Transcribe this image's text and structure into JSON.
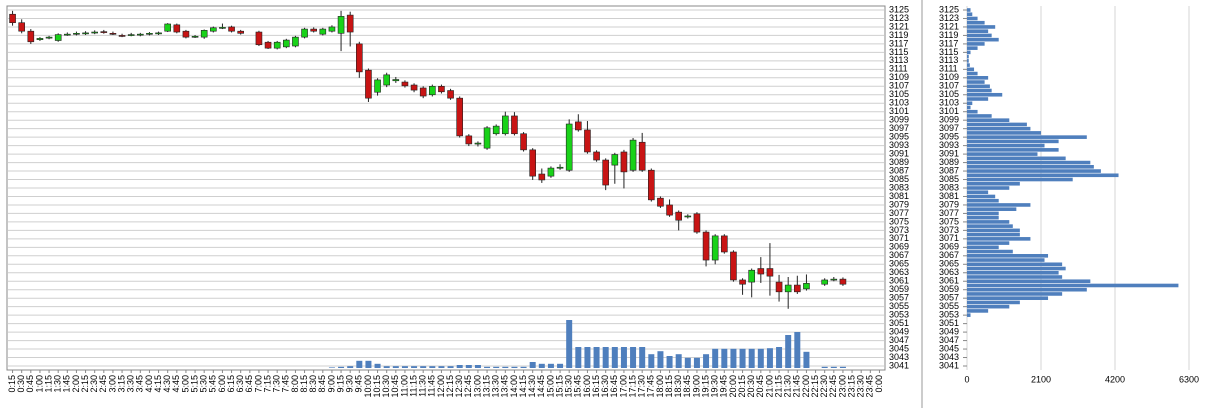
{
  "chart_data": [
    {
      "type": "candlestick",
      "categories": [
        "0:15",
        "0:30",
        "0:45",
        "1:00",
        "1:15",
        "1:30",
        "1:45",
        "2:00",
        "2:15",
        "2:30",
        "2:45",
        "3:00",
        "3:15",
        "3:30",
        "3:45",
        "4:00",
        "4:15",
        "4:30",
        "4:45",
        "5:00",
        "5:15",
        "5:30",
        "5:45",
        "6:00",
        "6:15",
        "6:30",
        "6:45",
        "7:00",
        "7:15",
        "7:30",
        "7:45",
        "8:00",
        "8:15",
        "8:30",
        "8:45",
        "9:00",
        "9:15",
        "9:30",
        "9:45",
        "10:00",
        "10:15",
        "10:30",
        "10:45",
        "11:00",
        "11:15",
        "11:30",
        "11:45",
        "12:00",
        "12:15",
        "12:30",
        "12:45",
        "13:00",
        "13:15",
        "13:30",
        "13:45",
        "14:00",
        "14:15",
        "14:30",
        "14:45",
        "15:00",
        "15:15",
        "15:30",
        "15:45",
        "16:00",
        "16:15",
        "16:30",
        "16:45",
        "17:00",
        "17:15",
        "17:30",
        "17:45",
        "18:00",
        "18:15",
        "18:30",
        "18:45",
        "19:00",
        "19:15",
        "19:30",
        "19:45",
        "20:00",
        "20:15",
        "20:30",
        "20:45",
        "21:00",
        "21:15",
        "21:30",
        "21:45",
        "22:00",
        "22:15",
        "22:30",
        "22:45",
        "23:00",
        "23:15",
        "23:30",
        "23:45",
        "0:00"
      ],
      "open": [
        3124,
        3122,
        3120,
        3118,
        3118.5,
        3117.8,
        3119.2,
        3119.4,
        3119.5,
        3119.7,
        3119.9,
        3119.5,
        3119,
        3119.1,
        3119.2,
        3119.4,
        3119.5,
        3120,
        3121.5,
        3120,
        3118.7,
        3118.6,
        3120,
        3120.8,
        3121,
        3120,
        null,
        3119.8,
        3117.4,
        3116,
        3116.3,
        3116.5,
        3118.6,
        3120.5,
        3119.3,
        3120,
        3119.5,
        3123.8,
        3117,
        3110.8,
        3105.6,
        3107.3,
        3108.3,
        3108,
        3107.3,
        3106.6,
        3105,
        3107,
        3106,
        3104.2,
        3095.3,
        3093.5,
        3092.4,
        3095.8,
        3095.8,
        3100,
        3095.8,
        3092,
        3086.3,
        3085.8,
        3087.7,
        3087.2,
        3098.6,
        3096.7,
        3091.5,
        3089.6,
        3088.4,
        3091.5,
        3087.2,
        3093.8,
        3087.2,
        3080.6,
        3079,
        3077.3,
        3076.2,
        3076.9,
        3072.6,
        3066,
        3071.7,
        3067.9,
        3061.3,
        3060.8,
        3064,
        3064,
        3060.8,
        3058.5,
        3060.1,
        3059.2,
        null,
        3060.3,
        3061.3,
        3061.5,
        null,
        null,
        null,
        null
      ],
      "high": [
        3124.8,
        3122.8,
        3120.5,
        3118.6,
        3118.9,
        3119.5,
        3119.7,
        3119.9,
        3120,
        3120.2,
        3120.3,
        3119.9,
        3119.4,
        3119.6,
        3119.6,
        3119.8,
        3119.9,
        3121.9,
        3121.8,
        3120.3,
        3119.1,
        3120.4,
        3121.1,
        3121.8,
        3121.3,
        3120.3,
        null,
        3120.1,
        3117.7,
        3117.7,
        3118.2,
        3118.9,
        3120.8,
        3120.9,
        3120.8,
        3121.4,
        3124.8,
        3124.6,
        3117.5,
        3111.2,
        3108.9,
        3110.2,
        3109.2,
        3108.4,
        3107.7,
        3107,
        3107.4,
        3107.4,
        3106.4,
        3104.6,
        3095.7,
        3094,
        3097.6,
        3098,
        3101,
        3100.9,
        3096.2,
        3092.4,
        3087.6,
        3088.1,
        3088.6,
        3099.2,
        3100.4,
        3098.8,
        3091.9,
        3090,
        3091.3,
        3092,
        3094.8,
        3096,
        3087.6,
        3081,
        3080.3,
        3077.7,
        3076.8,
        3077.3,
        3073,
        3072.1,
        3072.1,
        3068.3,
        3061.7,
        3064,
        3066.7,
        3070,
        3062.5,
        3062,
        3062.3,
        3062.6,
        null,
        3061.7,
        3062,
        3061.9,
        null,
        null,
        null,
        null
      ],
      "low": [
        3121.3,
        3119.5,
        3117,
        3117.7,
        3118.1,
        3117.5,
        3118.9,
        3119,
        3119.1,
        3119.3,
        3119.4,
        3119.1,
        3118.6,
        3118.8,
        3118.8,
        3119,
        3119.1,
        3119.8,
        3119.5,
        3118.3,
        3118.4,
        3118.2,
        3119.7,
        3120.5,
        3119.7,
        3119.2,
        null,
        3116.5,
        3115.8,
        3115.7,
        3116,
        3116.2,
        3118.3,
        3119.7,
        3119,
        3119.7,
        3115.3,
        3116.4,
        3109,
        3103.3,
        3104.8,
        3106.8,
        3107.8,
        3106.7,
        3105.6,
        3104.2,
        3104.6,
        3105.3,
        3103.8,
        3094.9,
        3092.9,
        3092.8,
        3092,
        3095.4,
        3095.4,
        3095.4,
        3091.6,
        3084.9,
        3084.2,
        3085.4,
        3087.3,
        3086.8,
        3096.3,
        3091.1,
        3089.2,
        3082.5,
        3084,
        3082.9,
        3086.8,
        3086.8,
        3079.8,
        3078.3,
        3076.2,
        3073,
        3075.8,
        3072.2,
        3064.5,
        3065,
        3067.5,
        3060.9,
        3057.8,
        3057.2,
        3060.6,
        3057.6,
        3056.2,
        3054.5,
        3058,
        3058.8,
        null,
        3059.9,
        3061,
        3059.9,
        null,
        null,
        null,
        null
      ],
      "close": [
        3122,
        3120,
        3117.5,
        3118.3,
        3118.6,
        3119.2,
        3119.3,
        3119.5,
        3119.6,
        3119.8,
        3119.7,
        3119.4,
        3118.9,
        3119.2,
        3119.3,
        3119.5,
        3119.6,
        3121.7,
        3119.8,
        3118.6,
        3118.8,
        3120.2,
        3120.8,
        3120.9,
        3120,
        3119.5,
        null,
        3116.8,
        3116,
        3117.4,
        3117.9,
        3118.6,
        3120.5,
        3120,
        3120.5,
        3121,
        3123.5,
        3119.8,
        3110.4,
        3104.2,
        3108.5,
        3109.7,
        3108.6,
        3107.1,
        3106.1,
        3104.7,
        3107,
        3105.7,
        3104.2,
        3095.3,
        3093.4,
        3093.6,
        3097.2,
        3097.6,
        3100,
        3095.8,
        3092,
        3085.8,
        3084.9,
        3087.7,
        3087.9,
        3098.1,
        3096.7,
        3091.5,
        3089.6,
        3083.7,
        3090.9,
        3086.8,
        3094.3,
        3087.2,
        3080.2,
        3078.7,
        3076.6,
        3075.4,
        3076.4,
        3072.6,
        3066,
        3071.7,
        3067.9,
        3061.3,
        3060.3,
        3063.6,
        3062.7,
        3062.2,
        3058.5,
        3060.1,
        3058.5,
        3060.5,
        null,
        3061.3,
        3061.5,
        3060.3,
        null,
        null,
        null,
        null
      ],
      "volume": [
        0,
        0,
        0,
        0,
        0,
        0,
        0,
        0,
        0,
        0,
        0,
        0,
        0,
        0,
        0,
        0,
        0,
        0,
        0,
        0,
        0,
        0,
        0,
        0,
        0,
        0,
        0,
        0,
        0,
        0,
        0,
        0,
        0,
        0,
        0,
        1,
        2,
        3,
        12,
        12,
        7,
        3,
        3,
        3,
        3,
        3,
        3,
        3,
        3,
        5,
        5,
        5,
        2,
        2,
        2,
        2,
        2,
        10,
        7,
        7,
        7,
        80,
        35,
        35,
        35,
        35,
        35,
        35,
        35,
        35,
        23,
        28,
        20,
        23,
        17,
        17,
        23,
        32,
        32,
        32,
        32,
        32,
        32,
        33,
        35,
        55,
        60,
        27,
        0,
        2,
        2,
        2,
        0,
        0,
        0,
        0
      ],
      "vlim": [
        0,
        100
      ],
      "up_color": "#19d219",
      "down_color": "#c81414",
      "volume_color": "#4f7fbd",
      "ylim": [
        3041,
        3125
      ],
      "yticks": [
        3125,
        3123,
        3121,
        3119,
        3117,
        3115,
        3113,
        3111,
        3109,
        3107,
        3105,
        3103,
        3101,
        3099,
        3097,
        3095,
        3093,
        3091,
        3089,
        3087,
        3085,
        3083,
        3081,
        3079,
        3077,
        3075,
        3073,
        3071,
        3069,
        3067,
        3065,
        3063,
        3061,
        3059,
        3057,
        3055,
        3053,
        3051,
        3049,
        3047,
        3045,
        3043,
        3041
      ],
      "grid": true
    },
    {
      "type": "hbar",
      "y": [
        3125,
        3124,
        3123,
        3122,
        3121,
        3120,
        3119,
        3118,
        3117,
        3116,
        3115,
        3114,
        3113,
        3112,
        3111,
        3110,
        3109,
        3108,
        3107,
        3106,
        3105,
        3104,
        3103,
        3102,
        3101,
        3100,
        3099,
        3098,
        3097,
        3096,
        3095,
        3094,
        3093,
        3092,
        3091,
        3090,
        3089,
        3088,
        3087,
        3086,
        3085,
        3084,
        3083,
        3082,
        3081,
        3080,
        3079,
        3078,
        3077,
        3076,
        3075,
        3074,
        3073,
        3072,
        3071,
        3070,
        3069,
        3068,
        3067,
        3066,
        3065,
        3064,
        3063,
        3062,
        3061,
        3060,
        3059,
        3058,
        3057,
        3056,
        3055,
        3054,
        3053,
        3052,
        3051,
        3050,
        3049,
        3048,
        3047,
        3046,
        3045,
        3044,
        3043,
        3042,
        3041
      ],
      "values": [
        100,
        150,
        300,
        500,
        800,
        600,
        700,
        900,
        500,
        300,
        100,
        50,
        50,
        80,
        200,
        300,
        600,
        500,
        650,
        700,
        1000,
        600,
        150,
        100,
        300,
        700,
        1200,
        1700,
        1800,
        2100,
        3400,
        2600,
        2200,
        2600,
        2000,
        2800,
        3500,
        3600,
        3800,
        4300,
        3000,
        1500,
        1200,
        600,
        800,
        900,
        1800,
        1400,
        900,
        900,
        1200,
        1300,
        1500,
        1500,
        1800,
        1200,
        900,
        1300,
        2300,
        2200,
        2700,
        2800,
        2600,
        2700,
        3500,
        6000,
        3400,
        2700,
        2300,
        1500,
        1200,
        600,
        100,
        0,
        0,
        0,
        0,
        0,
        0,
        0,
        0,
        0,
        0,
        0,
        0
      ],
      "color": "#4f7fbd",
      "ylim": [
        3041,
        3125
      ],
      "yticks": [
        3125,
        3123,
        3121,
        3119,
        3117,
        3115,
        3113,
        3111,
        3109,
        3107,
        3105,
        3103,
        3101,
        3099,
        3097,
        3095,
        3093,
        3091,
        3089,
        3087,
        3085,
        3083,
        3081,
        3079,
        3077,
        3075,
        3073,
        3071,
        3069,
        3067,
        3065,
        3063,
        3061,
        3059,
        3057,
        3055,
        3053,
        3051,
        3049,
        3047,
        3045,
        3043,
        3041
      ],
      "xlim": [
        0,
        6300
      ],
      "xticks": [
        0,
        2100,
        4200,
        6300
      ],
      "grid": true
    }
  ]
}
